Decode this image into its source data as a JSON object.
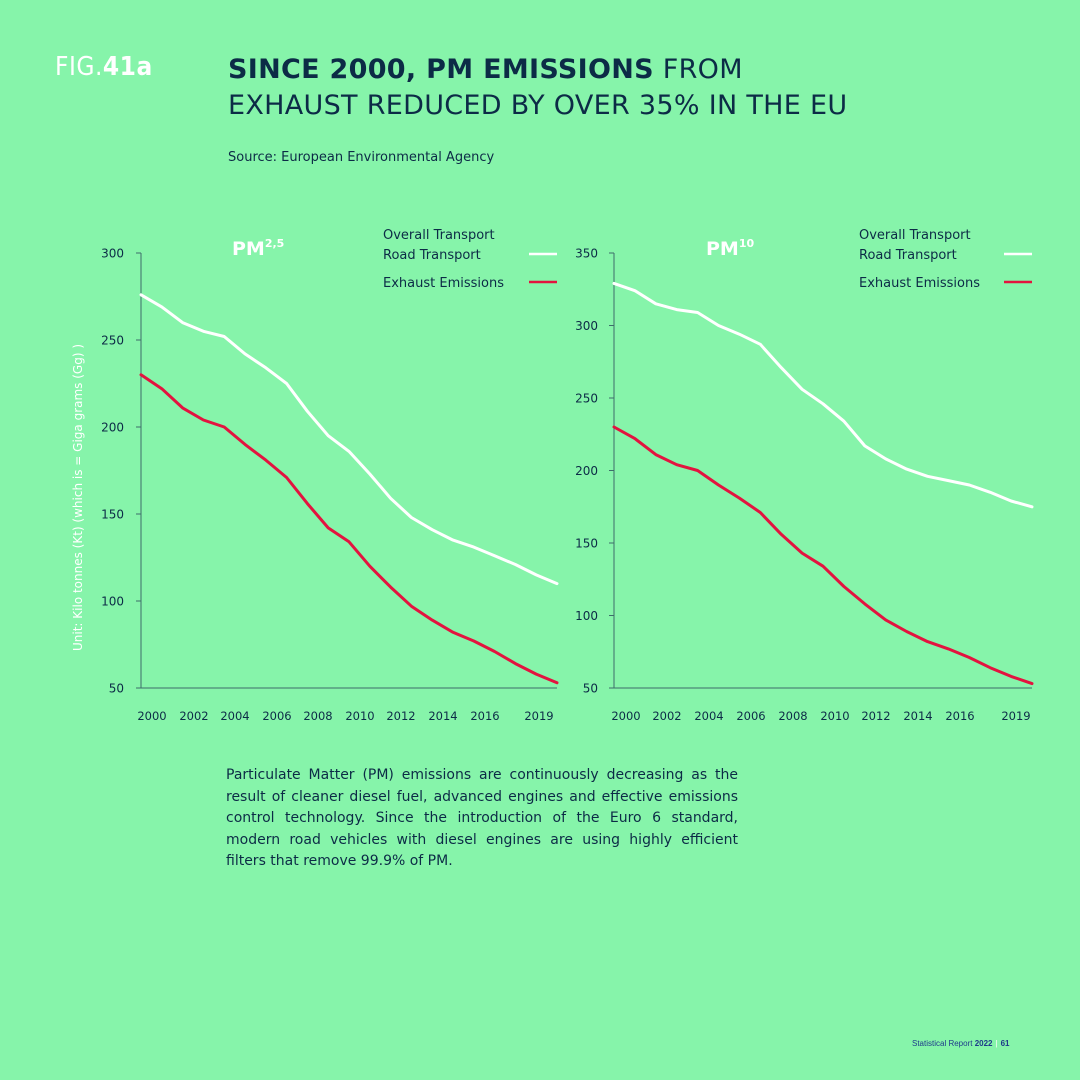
{
  "figure": {
    "label_prefix": "FIG.",
    "label_number": "41a",
    "title_bold": "SINCE 2000, PM EMISSIONS",
    "title_rest": " FROM EXHAUST REDUCED BY OVER 35% IN THE EU",
    "source": "Source: European Environmental Agency"
  },
  "y_axis_label": "Unit: Kilo tonnes (Kt) (which is = Giga grams (Gg) )",
  "colors": {
    "background": "#86f4aa",
    "road_transport": "#ffffff",
    "exhaust": "#e3133f",
    "text": "#0c2b46"
  },
  "chart_data": [
    {
      "type": "line",
      "title": "PM",
      "title_sup": "2,5",
      "ylim": [
        50,
        300
      ],
      "yticks": [
        300,
        250,
        200,
        150,
        100,
        50
      ],
      "xlim": [
        2000,
        2020
      ],
      "xtick_labels": [
        "2000",
        "2002",
        "2004",
        "2006",
        "2008",
        "2010",
        "2012",
        "2014",
        "2016",
        "2019"
      ],
      "legend": [
        {
          "label_line1": "Overall Transport",
          "label_line2": "Road Transport",
          "color": "#ffffff"
        },
        {
          "label_line1": "Exhaust Emissions",
          "label_line2": "",
          "color": "#e3133f"
        }
      ],
      "x": [
        2000,
        2001,
        2002,
        2003,
        2004,
        2005,
        2006,
        2007,
        2008,
        2009,
        2010,
        2011,
        2012,
        2013,
        2014,
        2015,
        2016,
        2017,
        2018,
        2019,
        2020
      ],
      "series": [
        {
          "name": "Overall Transport Road Transport",
          "color": "#ffffff",
          "values": [
            276,
            269,
            260,
            255,
            252,
            242,
            234,
            225,
            209,
            195,
            186,
            173,
            159,
            148,
            141,
            135,
            131,
            126,
            121,
            115,
            110
          ]
        },
        {
          "name": "Exhaust Emissions",
          "color": "#e3133f",
          "values": [
            230,
            222,
            211,
            204,
            200,
            190,
            181,
            171,
            156,
            142,
            134,
            120,
            108,
            97,
            89,
            82,
            77,
            71,
            64,
            58,
            53
          ]
        }
      ]
    },
    {
      "type": "line",
      "title": "PM",
      "title_sup": "10",
      "ylim": [
        50,
        350
      ],
      "yticks": [
        350,
        300,
        250,
        200,
        150,
        100,
        50
      ],
      "xlim": [
        2000,
        2020
      ],
      "xtick_labels": [
        "2000",
        "2002",
        "2004",
        "2006",
        "2008",
        "2010",
        "2012",
        "2014",
        "2016",
        "2019"
      ],
      "legend": [
        {
          "label_line1": "Overall Transport",
          "label_line2": "Road Transport",
          "color": "#ffffff"
        },
        {
          "label_line1": "Exhaust Emissions",
          "label_line2": "",
          "color": "#e3133f"
        }
      ],
      "x": [
        2000,
        2001,
        2002,
        2003,
        2004,
        2005,
        2006,
        2007,
        2008,
        2009,
        2010,
        2011,
        2012,
        2013,
        2014,
        2015,
        2016,
        2017,
        2018,
        2019,
        2020
      ],
      "series": [
        {
          "name": "Overall Transport Road Transport",
          "color": "#ffffff",
          "values": [
            329,
            324,
            315,
            311,
            309,
            300,
            294,
            287,
            271,
            256,
            246,
            234,
            217,
            208,
            201,
            196,
            193,
            190,
            185,
            179,
            175
          ]
        },
        {
          "name": "Exhaust Emissions",
          "color": "#e3133f",
          "values": [
            230,
            222,
            211,
            204,
            200,
            190,
            181,
            171,
            156,
            143,
            134,
            120,
            108,
            97,
            89,
            82,
            77,
            71,
            64,
            58,
            53
          ]
        }
      ]
    }
  ],
  "paragraph": "Particulate Matter (PM) emissions are continuously decreasing as the result of cleaner diesel fuel, advanced engines and effective emissions control technology. Since the introduction of the Euro 6 standard, modern road vehicles with diesel engines are using highly efficient filters that remove 99.9% of PM.",
  "footer": {
    "report": "Statistical Report ",
    "year": "2022",
    "separator": "|",
    "page": "61"
  }
}
